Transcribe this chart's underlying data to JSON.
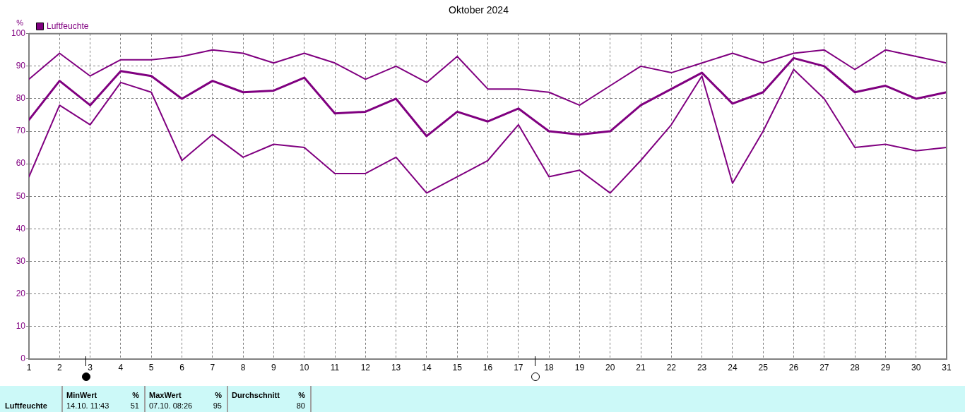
{
  "chart_data": {
    "type": "line",
    "title": "Oktober 2024",
    "ylabel": "%",
    "x": [
      1,
      2,
      3,
      4,
      5,
      6,
      7,
      8,
      9,
      10,
      11,
      12,
      13,
      14,
      15,
      16,
      17,
      18,
      19,
      20,
      21,
      22,
      23,
      24,
      25,
      26,
      27,
      28,
      29,
      30,
      31
    ],
    "series": [
      {
        "color": "#800080",
        "values": [
          86,
          94,
          87,
          92,
          92,
          93,
          95,
          94,
          91,
          94,
          91,
          86,
          90,
          85,
          93,
          83,
          83,
          82,
          78,
          84,
          90,
          88,
          91,
          94,
          91,
          94,
          95,
          89,
          95,
          93,
          91
        ]
      },
      {
        "name": "Luftfeuchte",
        "color": "#800080",
        "values": [
          73.5,
          85.5,
          78,
          88.5,
          87,
          80,
          85.5,
          82,
          82.5,
          86.5,
          75.5,
          76,
          80,
          68.5,
          76,
          73,
          77,
          70,
          69,
          70,
          78,
          83,
          88,
          78.5,
          82,
          92.5,
          90,
          82,
          84,
          80,
          82
        ]
      },
      {
        "color": "#800080",
        "values": [
          56,
          78,
          72,
          85,
          82,
          61,
          69,
          62,
          66,
          65,
          57,
          57,
          62,
          51,
          56,
          61,
          72,
          56,
          58,
          51,
          61,
          72,
          87,
          54,
          70,
          89,
          80,
          65,
          66,
          64,
          65
        ]
      }
    ],
    "xlim": [
      1,
      31
    ],
    "xticks": [
      1,
      2,
      3,
      4,
      5,
      6,
      7,
      8,
      9,
      10,
      11,
      12,
      13,
      14,
      15,
      16,
      17,
      18,
      19,
      20,
      21,
      22,
      23,
      24,
      25,
      26,
      27,
      28,
      29,
      30,
      31
    ],
    "ylim": [
      0,
      100
    ],
    "yticks": [
      0,
      10,
      20,
      30,
      40,
      50,
      60,
      70,
      80,
      90,
      100
    ],
    "grid": true,
    "legend": "top left",
    "marker": "none",
    "line_style": "solid",
    "annotations": [
      "Luftfeuchte",
      "MinWert",
      "%",
      "14.10. 11:43",
      "51",
      "MaxWert",
      "%",
      "07.10. 08:26",
      "95",
      "Durchschnitt",
      "%",
      "80"
    ]
  }
}
